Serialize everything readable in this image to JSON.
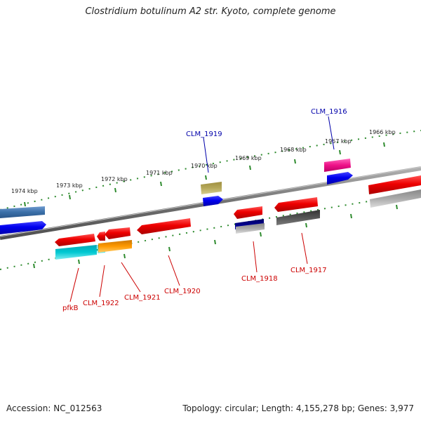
{
  "title": "Clostridium botulinum A2 str. Kyoto, complete genome",
  "footer": {
    "accession": "Accession: NC_012563",
    "summary": "Topology: circular; Length: 4,155,278 bp; Genes: 3,977"
  },
  "scale_labels": [
    "1974 kbp",
    "1973 kbp",
    "1972 kbp",
    "1971 kbp",
    "1970 kbp",
    "1969 kbp",
    "1968 kbp",
    "1967 kbp",
    "1966 kbp"
  ],
  "gene_labels": {
    "forward": [
      "CLM_1919",
      "CLM_1916"
    ],
    "reverse": [
      "pfkB",
      "CLM_1922",
      "CLM_1921",
      "CLM_1920",
      "CLM_1918",
      "CLM_1917"
    ]
  },
  "colors": {
    "forward_label": "#0000aa",
    "reverse_label": "#cc0000",
    "backbone": "#808080",
    "tick": "#2e8b2e",
    "red_gene": "#ee0000",
    "blue_gene": "#0000ee",
    "steel_gene": "#3a6fa8",
    "olive_gene": "#b5a85a",
    "magenta_gene": "#ee1188",
    "cyan_gene": "#00c8d2",
    "orange_gene": "#ff9900",
    "navy_gene": "#000088",
    "gray_gene": "#555555",
    "silver_gene": "#aaaaaa"
  }
}
